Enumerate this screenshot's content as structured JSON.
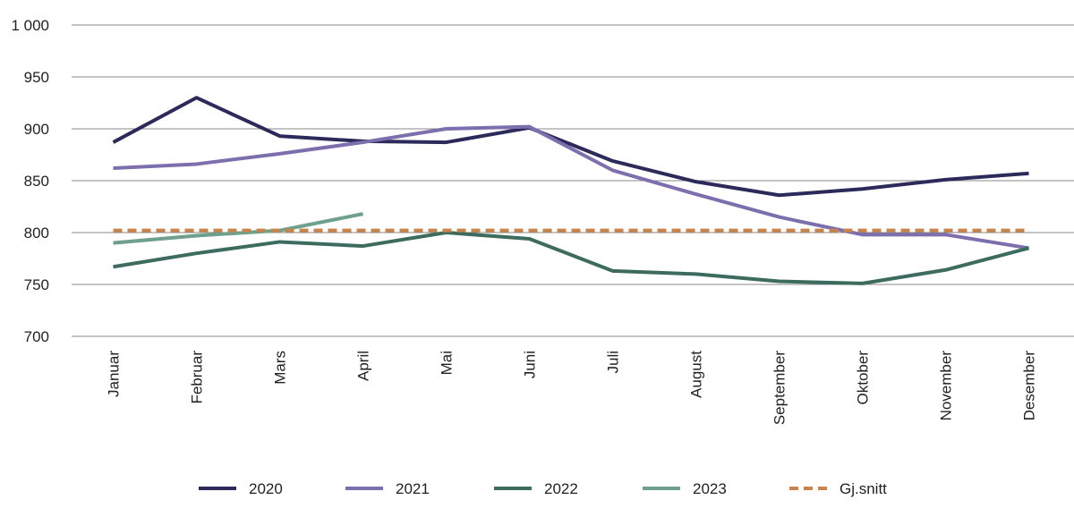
{
  "chart_data": {
    "type": "line",
    "categories": [
      "Januar",
      "Februar",
      "Mars",
      "April",
      "Mai",
      "Juni",
      "Juli",
      "August",
      "September",
      "Oktober",
      "November",
      "Desember"
    ],
    "series": [
      {
        "name": "2020",
        "color": "#2b2a5a",
        "values": [
          887,
          930,
          893,
          888,
          887,
          901,
          869,
          849,
          836,
          842,
          851,
          857
        ]
      },
      {
        "name": "2021",
        "color": "#7d6fae",
        "values": [
          862,
          866,
          876,
          887,
          900,
          902,
          860,
          837,
          815,
          798,
          798,
          785
        ]
      },
      {
        "name": "2022",
        "color": "#3d6b5e",
        "values": [
          767,
          780,
          791,
          787,
          800,
          794,
          763,
          760,
          753,
          751,
          764,
          785
        ]
      },
      {
        "name": "2023",
        "color": "#6fa08e",
        "values": [
          790,
          797,
          802,
          818,
          null,
          null,
          null,
          null,
          null,
          null,
          null,
          null
        ]
      },
      {
        "name": "Gj.snitt",
        "color": "#c8844a",
        "dashed": true,
        "values": [
          802,
          802,
          802,
          802,
          802,
          802,
          802,
          802,
          802,
          802,
          802,
          802
        ]
      }
    ],
    "ylim": [
      700,
      1000
    ],
    "yticks": [
      700,
      750,
      800,
      850,
      900,
      950,
      {
        "value": 1000,
        "label": "1 000"
      }
    ],
    "grid": true,
    "legend": "bottom"
  }
}
